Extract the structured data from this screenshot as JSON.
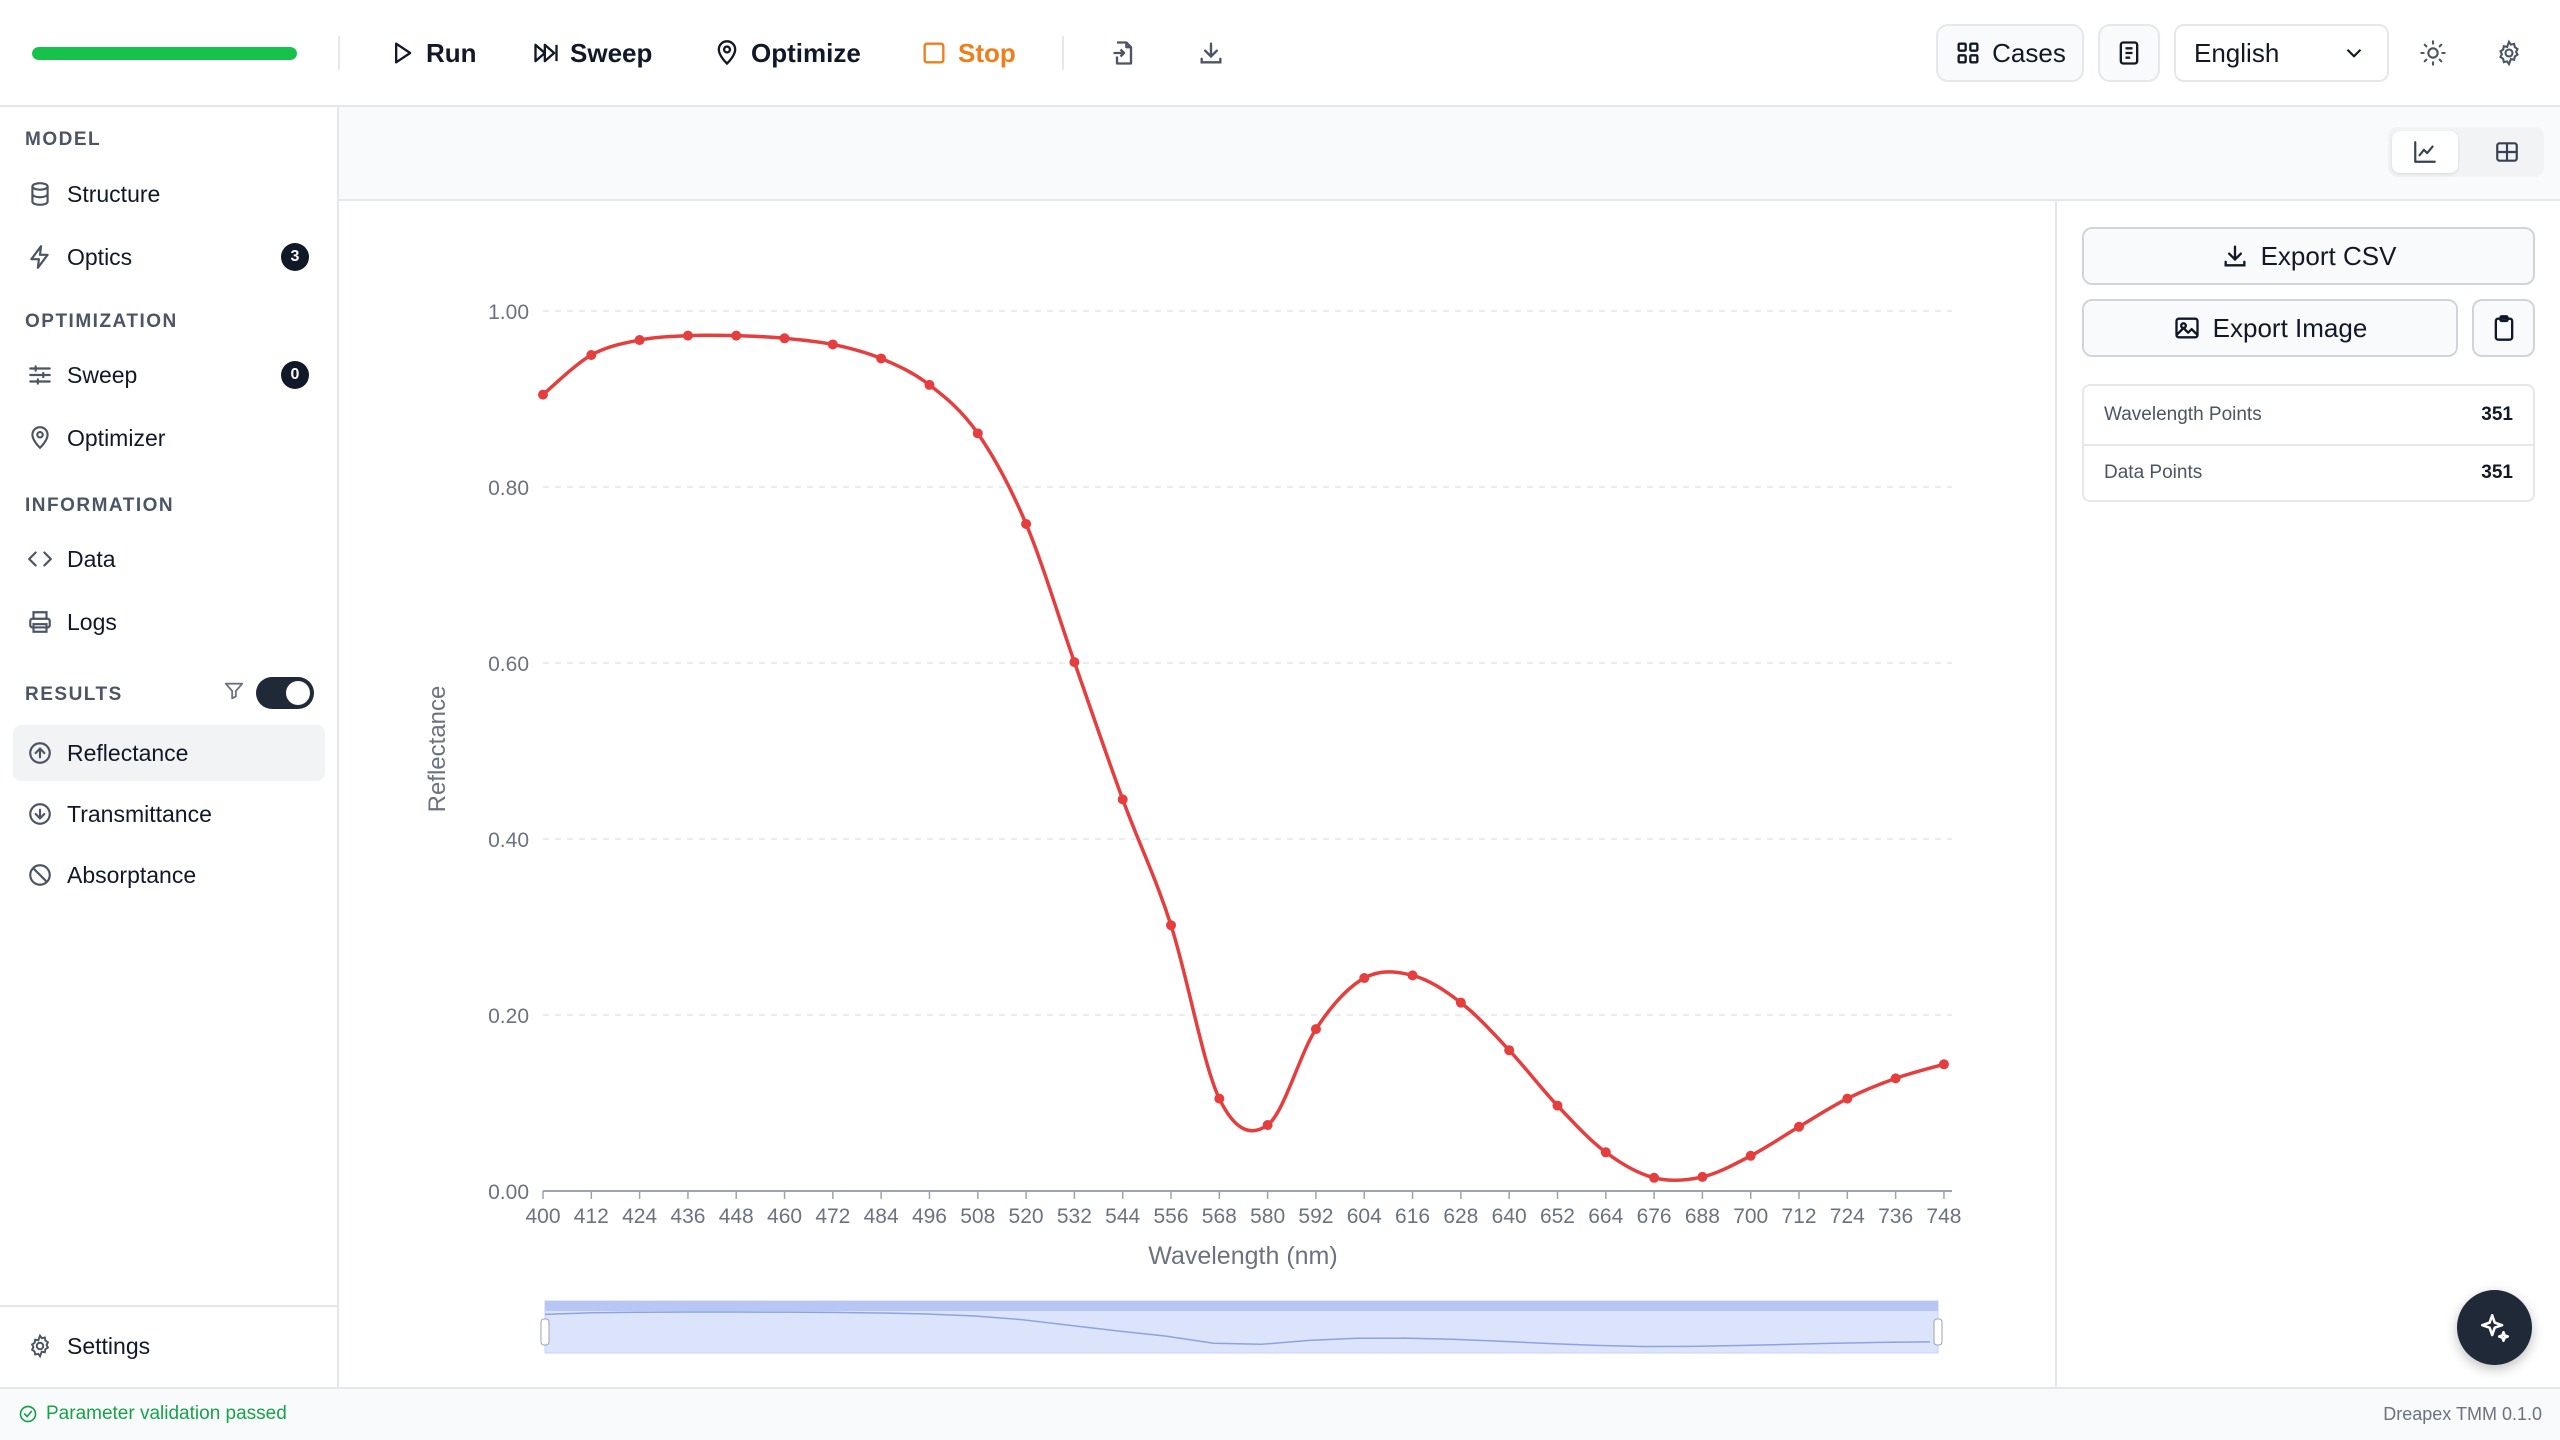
{
  "toolbar": {
    "progress": 1.0,
    "run_label": "Run",
    "sweep_label": "Sweep",
    "optimize_label": "Optimize",
    "stop_label": "Stop",
    "cases_label": "Cases",
    "language": "English"
  },
  "sidebar": {
    "model_title": "MODEL",
    "structure_label": "Structure",
    "optics_label": "Optics",
    "optics_badge": "3",
    "optimization_title": "OPTIMIZATION",
    "sweep_label": "Sweep",
    "sweep_badge": "0",
    "optimizer_label": "Optimizer",
    "information_title": "INFORMATION",
    "data_label": "Data",
    "logs_label": "Logs",
    "results_title": "RESULTS",
    "reflectance_label": "Reflectance",
    "transmittance_label": "Transmittance",
    "absorptance_label": "Absorptance",
    "settings_label": "Settings"
  },
  "panel": {
    "export_csv_label": "Export CSV",
    "export_image_label": "Export Image",
    "wavelength_points_label": "Wavelength Points",
    "wavelength_points_value": "351",
    "data_points_label": "Data Points",
    "data_points_value": "351"
  },
  "status": {
    "message": "Parameter validation passed",
    "version": "Dreapex TMM 0.1.0"
  },
  "colors": {
    "series": "#e53e3e",
    "progress": "#16c24a",
    "stop": "#f07d1a",
    "status_ok": "#16a34a"
  },
  "chart_data": {
    "type": "line",
    "xlabel": "Wavelength (nm)",
    "ylabel": "Reflectance",
    "xlim": [
      400,
      750
    ],
    "ylim": [
      0,
      1.0
    ],
    "yticks": [
      "0.00",
      "0.20",
      "0.40",
      "0.60",
      "0.80",
      "1.00"
    ],
    "xticks": [
      400,
      412,
      424,
      436,
      448,
      460,
      472,
      484,
      496,
      508,
      520,
      532,
      544,
      556,
      568,
      580,
      592,
      604,
      616,
      628,
      640,
      652,
      664,
      676,
      688,
      700,
      712,
      724,
      736,
      748
    ],
    "grid": true,
    "legend": "none",
    "series": [
      {
        "x": [
          400,
          412,
          424,
          436,
          448,
          460,
          472,
          484,
          496,
          508,
          520,
          532,
          544,
          556,
          568,
          580,
          592,
          604,
          616,
          628,
          640,
          652,
          664,
          676,
          688,
          700,
          712,
          724,
          736,
          748
        ],
        "y": [
          0.905,
          0.95,
          0.967,
          0.972,
          0.972,
          0.969,
          0.962,
          0.946,
          0.916,
          0.861,
          0.758,
          0.601,
          0.445,
          0.302,
          0.105,
          0.075,
          0.184,
          0.242,
          0.245,
          0.214,
          0.16,
          0.097,
          0.044,
          0.015,
          0.016,
          0.04,
          0.073,
          0.105,
          0.128,
          0.144
        ]
      }
    ],
    "overview_brush": {
      "x_range": [
        400,
        750
      ]
    }
  }
}
